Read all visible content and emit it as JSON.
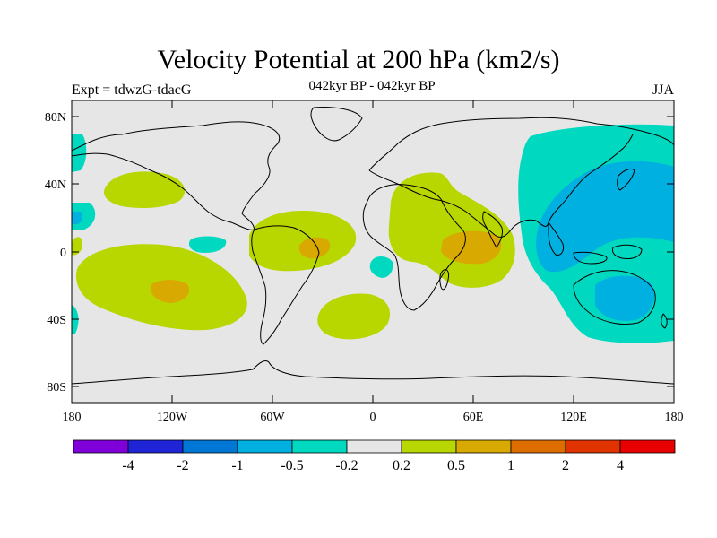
{
  "title": "Velocity Potential at 200 hPa (km2/s)",
  "subtitle": "042kyr BP - 042kyr BP",
  "expt_label": "Expt = tdwzG-tdacG",
  "season": "JJA",
  "map": {
    "lat_ticks": [
      "80N",
      "40N",
      "0",
      "40S",
      "80S"
    ],
    "lon_ticks": [
      "180",
      "120W",
      "60W",
      "0",
      "60E",
      "120E",
      "180"
    ],
    "lon_range": [
      -180,
      180
    ],
    "lat_range": [
      -90,
      90
    ]
  },
  "colorbar": {
    "colors": [
      "#7f00d8",
      "#1f24d7",
      "#0077d4",
      "#00b0e0",
      "#00d9c0",
      "#e6e6e6",
      "#b8d600",
      "#d8a900",
      "#de6d00",
      "#e03300",
      "#e80000"
    ],
    "labels": [
      "-4",
      "-2",
      "-1",
      "-0.5",
      "-0.2",
      "0.2",
      "0.5",
      "1",
      "2",
      "4"
    ]
  }
}
